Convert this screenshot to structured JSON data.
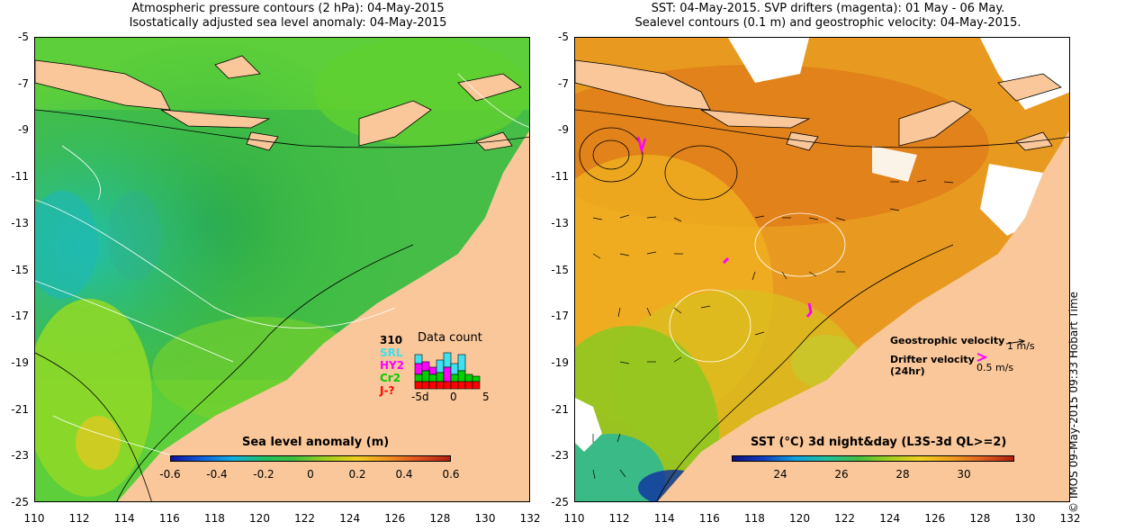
{
  "left": {
    "title1": "Atmospheric pressure contours (2 hPa): 04-May-2015",
    "title2": "Isostatically adjusted sea level anomaly: 04-May-2015",
    "colorbar_title": "Sea level anomaly (m)",
    "colorbar_ticks": [
      "-0.6",
      "-0.4",
      "-0.2",
      "0",
      "0.2",
      "0.4",
      "0.6"
    ],
    "datacount": {
      "title": "Data count",
      "sats": [
        "310",
        "SRL",
        "HY2",
        "Cr2",
        "J-?"
      ],
      "axis": [
        "-5d",
        "0",
        "5"
      ]
    }
  },
  "right": {
    "title1": "SST: 04-May-2015. SVP drifters (magenta): 01 May - 06 May.",
    "title2": "Sealevel contours (0.1 m) and geostrophic velocity: 04-May-2015.",
    "colorbar_title": "SST (°C) 3d night&day (L3S-3d QL>=2)",
    "colorbar_ticks": [
      "24",
      "26",
      "28",
      "30"
    ],
    "legend_geo": "Geostrophic velocity",
    "legend_geo_unit": "1 m/s",
    "legend_drifter": "Drifter velocity",
    "legend_drifter2": "(24hr)",
    "legend_drifter_unit": "0.5 m/s"
  },
  "axes": {
    "y_ticks": [
      "-5",
      "-7",
      "-9",
      "-11",
      "-13",
      "-15",
      "-17",
      "-19",
      "-21",
      "-23",
      "-25"
    ],
    "x_ticks": [
      "110",
      "112",
      "114",
      "116",
      "118",
      "120",
      "122",
      "124",
      "126",
      "128",
      "130",
      "132"
    ]
  },
  "copyright": "© IMOS 09-May-2015 09:33 Hobart Time",
  "colors": {
    "land": "#f9c79a",
    "drifter": "#ff00ff"
  }
}
